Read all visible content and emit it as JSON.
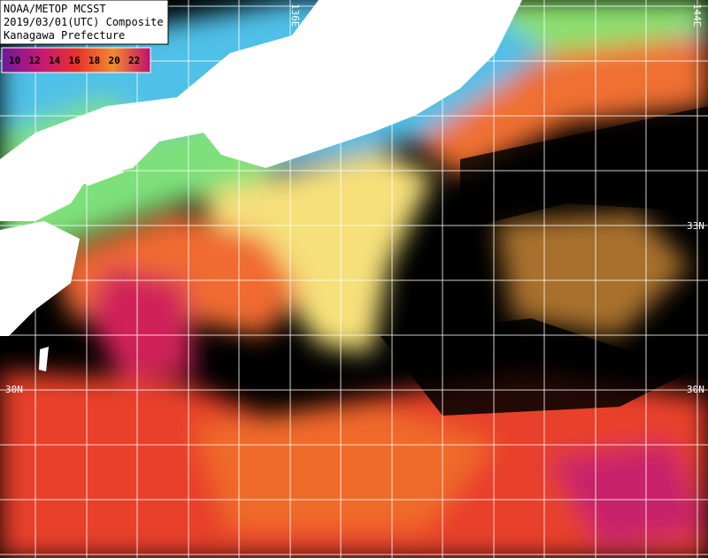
{
  "header": {
    "lines": [
      "NOAA/METOP MCSST",
      "2019/03/01(UTC) Composite",
      "Kanagawa Prefecture"
    ]
  },
  "legend": {
    "labels": [
      "10",
      "12",
      "14",
      "16",
      "18",
      "20",
      "22"
    ]
  },
  "grid_labels": {
    "lon": [
      "136E",
      "144E"
    ],
    "lat": [
      "33N",
      "30N"
    ]
  }
}
